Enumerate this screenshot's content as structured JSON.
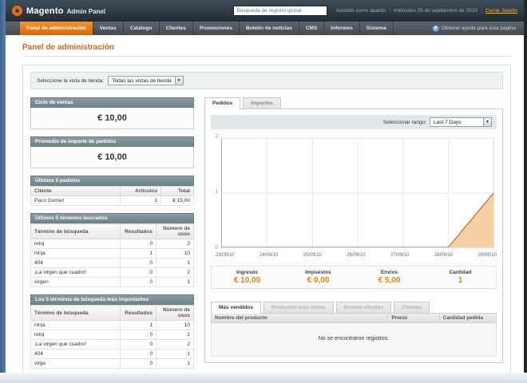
{
  "header": {
    "logo_title": "Magento",
    "logo_subtitle": "Admin Panel",
    "search_value": "Búsqueda de registro global",
    "logged_in_as": "Accedió como apardo",
    "date": "miércoles 29 de septiembre de 2010",
    "logout_label": "Cerrar Sesión"
  },
  "nav": {
    "items": [
      {
        "label": "Panel de administración",
        "active": true
      },
      {
        "label": "Ventas",
        "active": false
      },
      {
        "label": "Catálogo",
        "active": false
      },
      {
        "label": "Clientes",
        "active": false
      },
      {
        "label": "Promociones",
        "active": false
      },
      {
        "label": "Boletín de noticias",
        "active": false
      },
      {
        "label": "CMS",
        "active": false
      },
      {
        "label": "Informes",
        "active": false
      },
      {
        "label": "Sistema",
        "active": false
      }
    ],
    "help_label": "Obtener ayuda para esta página"
  },
  "page": {
    "title": "Panel de administración"
  },
  "store_view": {
    "label": "Seleccione la vista de tienda:",
    "selected": "Todas las vistas de tienda"
  },
  "left": {
    "lifetime_sales": {
      "title": "Ciclo de ventas",
      "value": "€ 10,00"
    },
    "average_orders": {
      "title": "Promedio de importe de pedidos",
      "value": "€ 10,00"
    },
    "last_orders": {
      "title": "Últimos 5 pedidos",
      "columns": [
        "Cliente",
        "Artículos",
        "Total"
      ],
      "rows": [
        [
          "Paco Gomez",
          "1",
          "€ 15,00"
        ]
      ]
    },
    "last_search": {
      "title": "Últimos 5 términos buscados",
      "columns": [
        "Término de búsqueda",
        "Resultados",
        "Número de usos"
      ],
      "rows": [
        [
          "reloj",
          "0",
          "2"
        ],
        [
          "ninja",
          "1",
          "10"
        ],
        [
          "404",
          "0",
          "1"
        ],
        [
          "¡La virgen que cuadro!",
          "0",
          "2"
        ],
        [
          "virgen",
          "0",
          "1"
        ]
      ]
    },
    "top_search": {
      "title": "Los 5 términos de búsqueda más importantes",
      "columns": [
        "Término de búsqueda",
        "Resultados",
        "Número de usos"
      ],
      "rows": [
        [
          "ninja",
          "1",
          "10"
        ],
        [
          "reloj",
          "0",
          "2"
        ],
        [
          "¡La virgen que cuadro!",
          "0",
          "2"
        ],
        [
          "404",
          "0",
          "1"
        ],
        [
          "virge",
          "0",
          "1"
        ]
      ]
    }
  },
  "dashboard": {
    "tabs": [
      {
        "label": "Pedidos",
        "active": true
      },
      {
        "label": "Importes",
        "active": false
      }
    ],
    "range_label": "Seleccionar rango:",
    "range_selected": "Last 7 Days",
    "stats": [
      {
        "label": "Ingresos",
        "value": "€ 10,00"
      },
      {
        "label": "Impuestos",
        "value": "€ 0,00"
      },
      {
        "label": "Envíos",
        "value": "€ 5,00"
      },
      {
        "label": "Cantidad",
        "value": "1"
      }
    ],
    "bottom_tabs": [
      {
        "label": "Más vendidos",
        "active": true
      },
      {
        "label": "Productos más vistos",
        "active": false
      },
      {
        "label": "Nuevos clientes",
        "active": false
      },
      {
        "label": "Clientes",
        "active": false
      }
    ],
    "grid": {
      "columns": [
        "Nombre del producto",
        "Precio",
        "Cantidad pedida"
      ],
      "empty_text": "No se encontraron registros."
    }
  },
  "chart_data": {
    "type": "area",
    "title": "Pedidos - Last 7 Days",
    "x": [
      "23/09/10",
      "24/09/10",
      "25/09/10",
      "26/09/10",
      "27/09/10",
      "28/09/10",
      "29/09/10"
    ],
    "series": [
      {
        "name": "Pedidos",
        "values": [
          0,
          0,
          0,
          0,
          0,
          0,
          1
        ]
      }
    ],
    "ylim": [
      0,
      2
    ],
    "yticks": [
      0,
      1,
      2
    ],
    "grid": true,
    "legend_position": "none",
    "fill_color": "#f6cfa2",
    "line_color": "#c96f39",
    "grid_color": "#e6e6e6"
  },
  "colors": {
    "accent_orange": "#ee6a10",
    "header_dark": "#2c3640",
    "panel_head": "#7c9299",
    "stat_value": "#ef8200"
  }
}
